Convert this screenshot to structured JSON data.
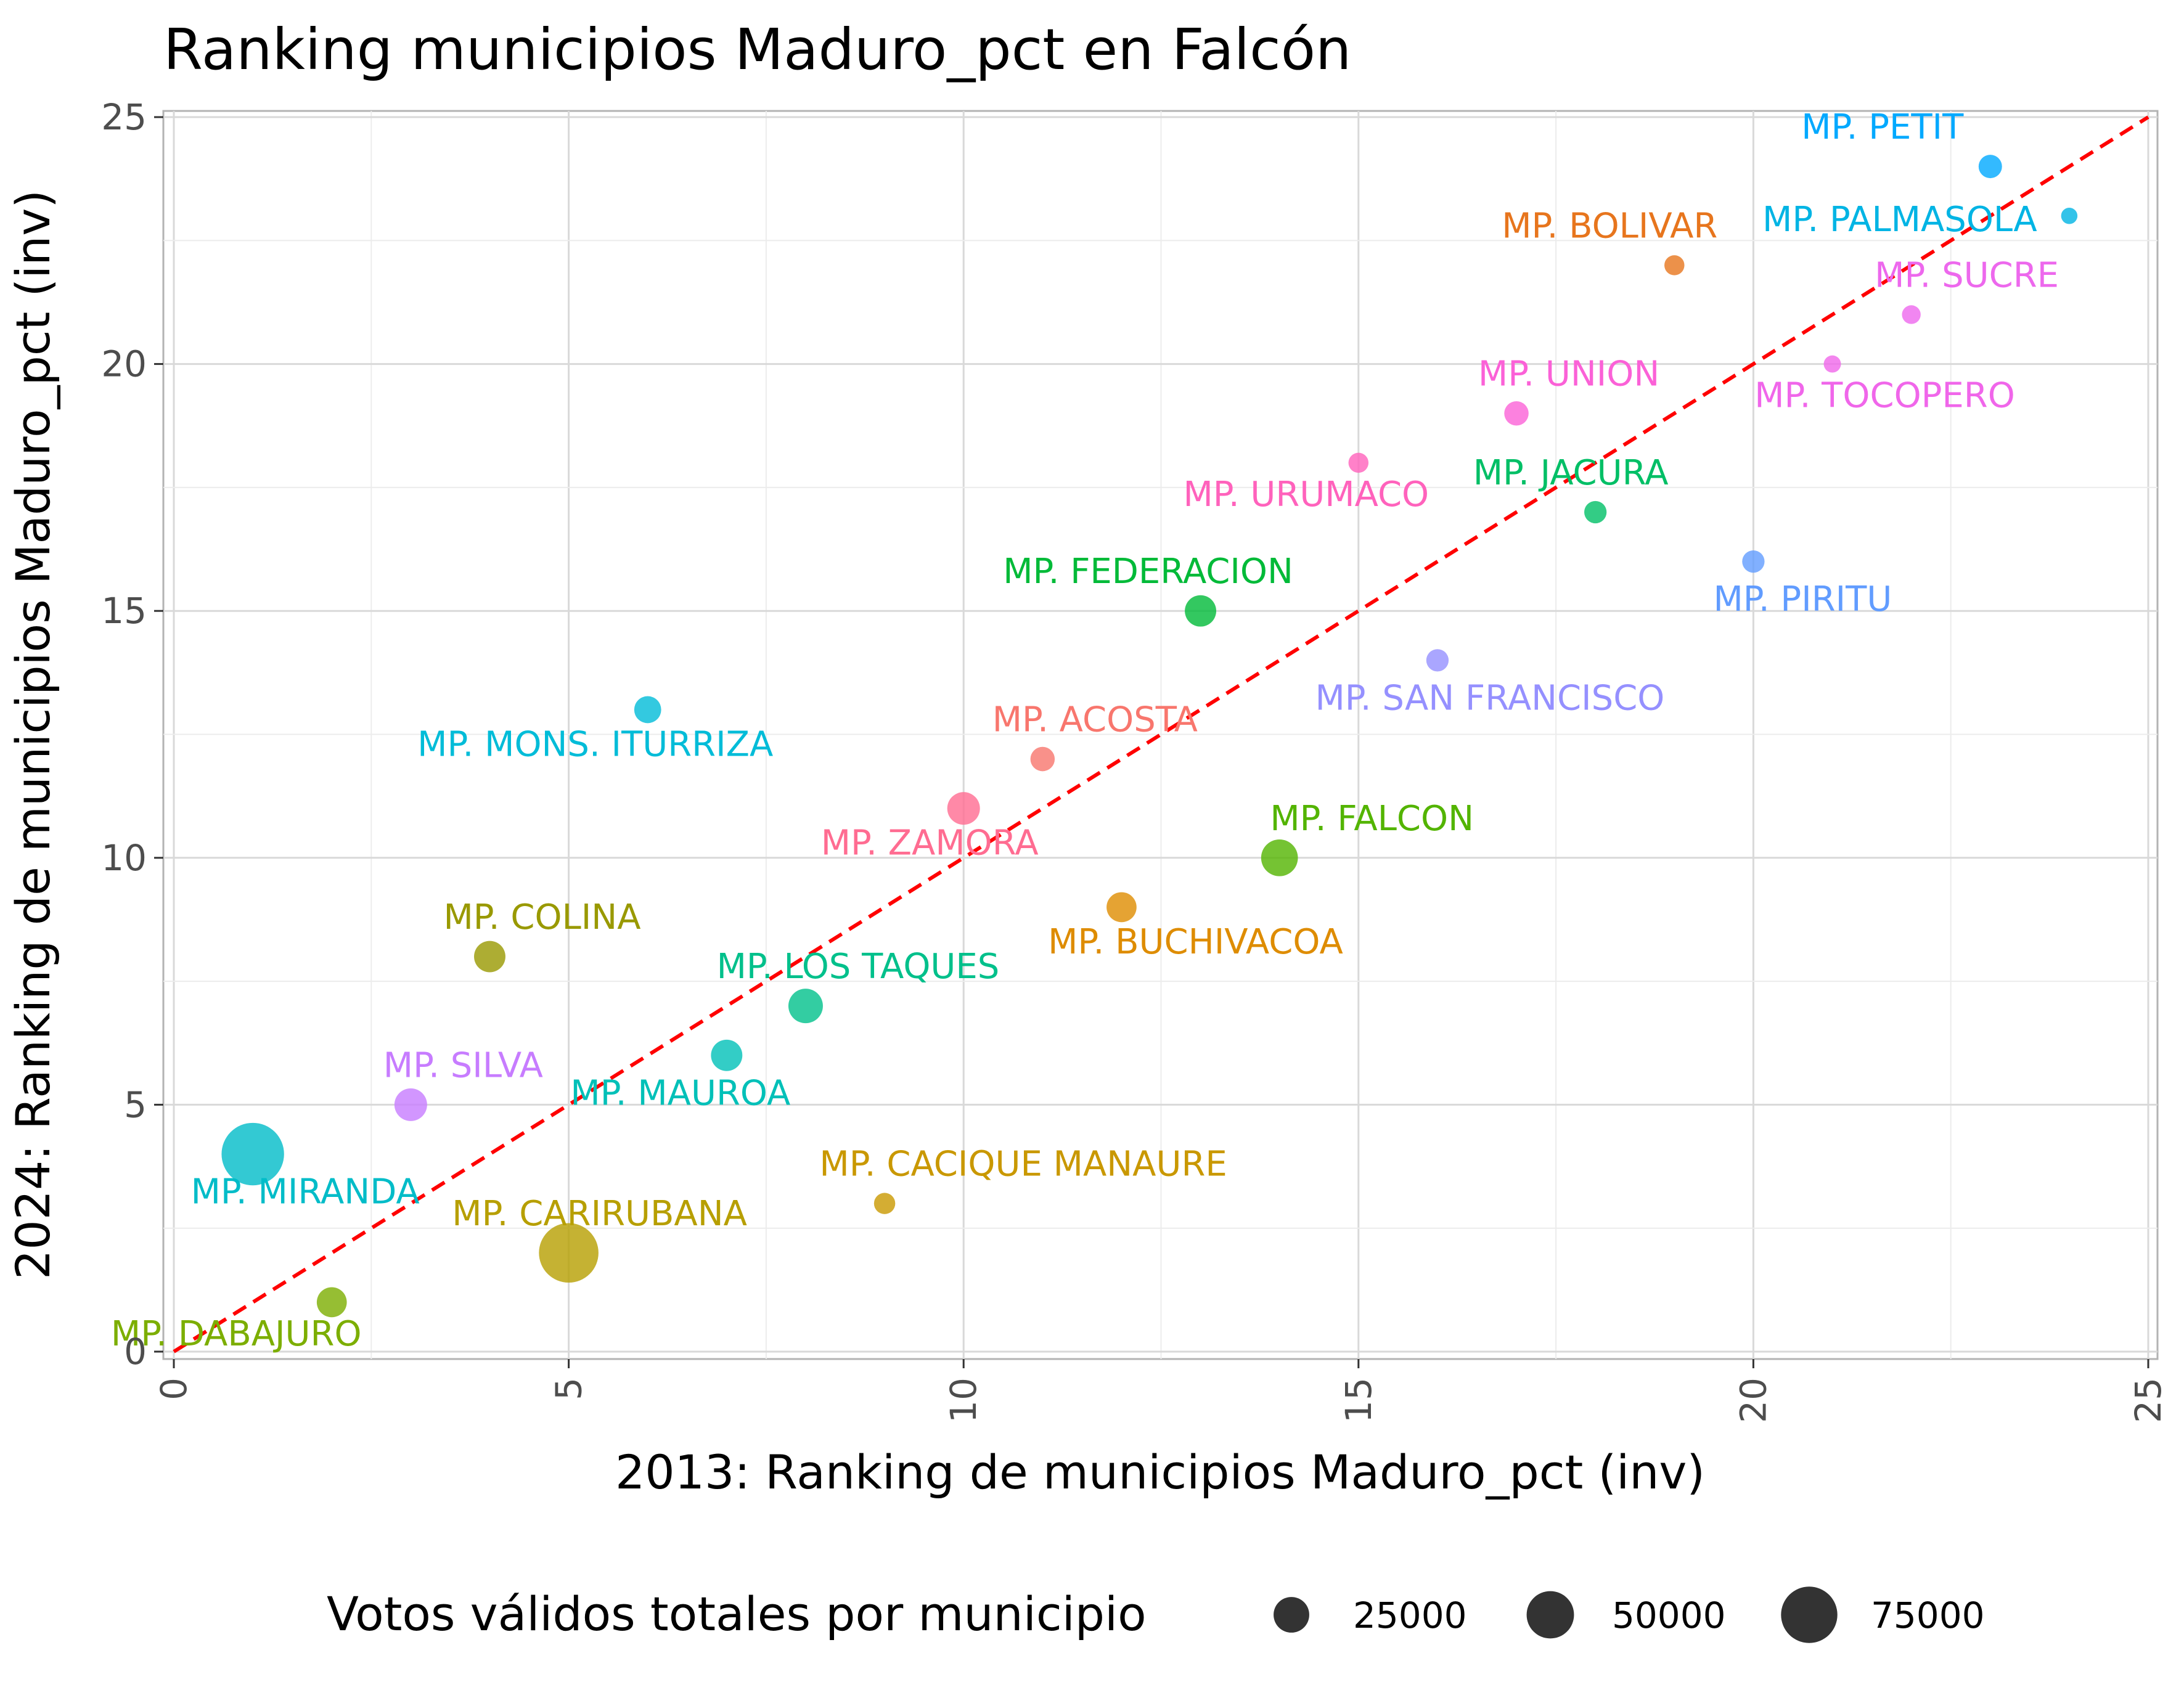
{
  "chart_data": {
    "type": "scatter",
    "title": "Ranking municipios Maduro_pct en Falcón",
    "xlabel": "2013: Ranking de municipios Maduro_pct (inv)",
    "ylabel": "2024: Ranking de municipios Maduro_pct (inv)",
    "xlim": [
      0,
      25
    ],
    "ylim": [
      0,
      25
    ],
    "xticks": [
      "0",
      "5",
      "10",
      "15",
      "20",
      "25"
    ],
    "yticks": [
      "0",
      "5",
      "10",
      "15",
      "20",
      "25"
    ],
    "grid": true,
    "reference_line": {
      "type": "y = x",
      "style": "dashed",
      "color": "#ff0000"
    },
    "legend": {
      "title": "Votos válidos totales por municipio",
      "position": "bottom",
      "entries": [
        {
          "label": "25000",
          "value": 25000
        },
        {
          "label": "50000",
          "value": 50000
        },
        {
          "label": "75000",
          "value": 75000
        }
      ]
    },
    "points": [
      {
        "label": "MP. PETIT",
        "x": 23,
        "y": 24,
        "votes": 8000,
        "color": "#00a9ff"
      },
      {
        "label": "MP. PALMASOLA",
        "x": 24,
        "y": 23,
        "votes": 2500,
        "color": "#00b4e4"
      },
      {
        "label": "MP. BOLIVAR",
        "x": 19,
        "y": 22,
        "votes": 5000,
        "color": "#e7751d"
      },
      {
        "label": "MP. SUCRE",
        "x": 22,
        "y": 21,
        "votes": 4000,
        "color": "#ed68ed"
      },
      {
        "label": "MP. TOCOPERO",
        "x": 21,
        "y": 20,
        "votes": 3000,
        "color": "#f066ea"
      },
      {
        "label": "MP. UNION",
        "x": 17,
        "y": 19,
        "votes": 9000,
        "color": "#fb61d7"
      },
      {
        "label": "MP. URUMACO",
        "x": 15,
        "y": 18,
        "votes": 5000,
        "color": "#ff62bc"
      },
      {
        "label": "MP. JACURA",
        "x": 18,
        "y": 17,
        "votes": 7000,
        "color": "#00bf66"
      },
      {
        "label": "MP. PIRITU",
        "x": 20,
        "y": 16,
        "votes": 7000,
        "color": "#619cff"
      },
      {
        "label": "MP. FEDERACION",
        "x": 13,
        "y": 15,
        "votes": 18000,
        "color": "#00ba38"
      },
      {
        "label": "MP. SAN FRANCISCO",
        "x": 16,
        "y": 14,
        "votes": 7000,
        "color": "#9590ff"
      },
      {
        "label": "MP. MONS. ITURRIZA",
        "x": 6,
        "y": 13,
        "votes": 12000,
        "color": "#00bcd8"
      },
      {
        "label": "MP. ACOSTA",
        "x": 11,
        "y": 12,
        "votes": 9000,
        "color": "#f8766d"
      },
      {
        "label": "MP. ZAMORA",
        "x": 10,
        "y": 11,
        "votes": 20000,
        "color": "#ff6c91"
      },
      {
        "label": "MP. FALCON",
        "x": 14,
        "y": 10,
        "votes": 27000,
        "color": "#53b400"
      },
      {
        "label": "MP. BUCHIVACOA",
        "x": 12,
        "y": 9,
        "votes": 16000,
        "color": "#de8c00"
      },
      {
        "label": "MP. COLINA",
        "x": 4,
        "y": 8,
        "votes": 18000,
        "color": "#999900"
      },
      {
        "label": "MP. LOS TAQUES",
        "x": 8,
        "y": 7,
        "votes": 23000,
        "color": "#00c08b"
      },
      {
        "label": "MP. MAUROA",
        "x": 7,
        "y": 6,
        "votes": 18000,
        "color": "#00c0b8"
      },
      {
        "label": "MP. SILVA",
        "x": 3,
        "y": 5,
        "votes": 20000,
        "color": "#c77cff"
      },
      {
        "label": "MP. MIRANDA",
        "x": 1,
        "y": 4,
        "votes": 95000,
        "color": "#00bcc8"
      },
      {
        "label": "MP. CACIQUE MANAURE",
        "x": 9,
        "y": 3,
        "votes": 6000,
        "color": "#c99800"
      },
      {
        "label": "MP. CARIRUBANA",
        "x": 5,
        "y": 2,
        "votes": 85000,
        "color": "#b79f00"
      },
      {
        "label": "MP. DABAJURO",
        "x": 2,
        "y": 1,
        "votes": 16000,
        "color": "#7cae00"
      }
    ]
  }
}
